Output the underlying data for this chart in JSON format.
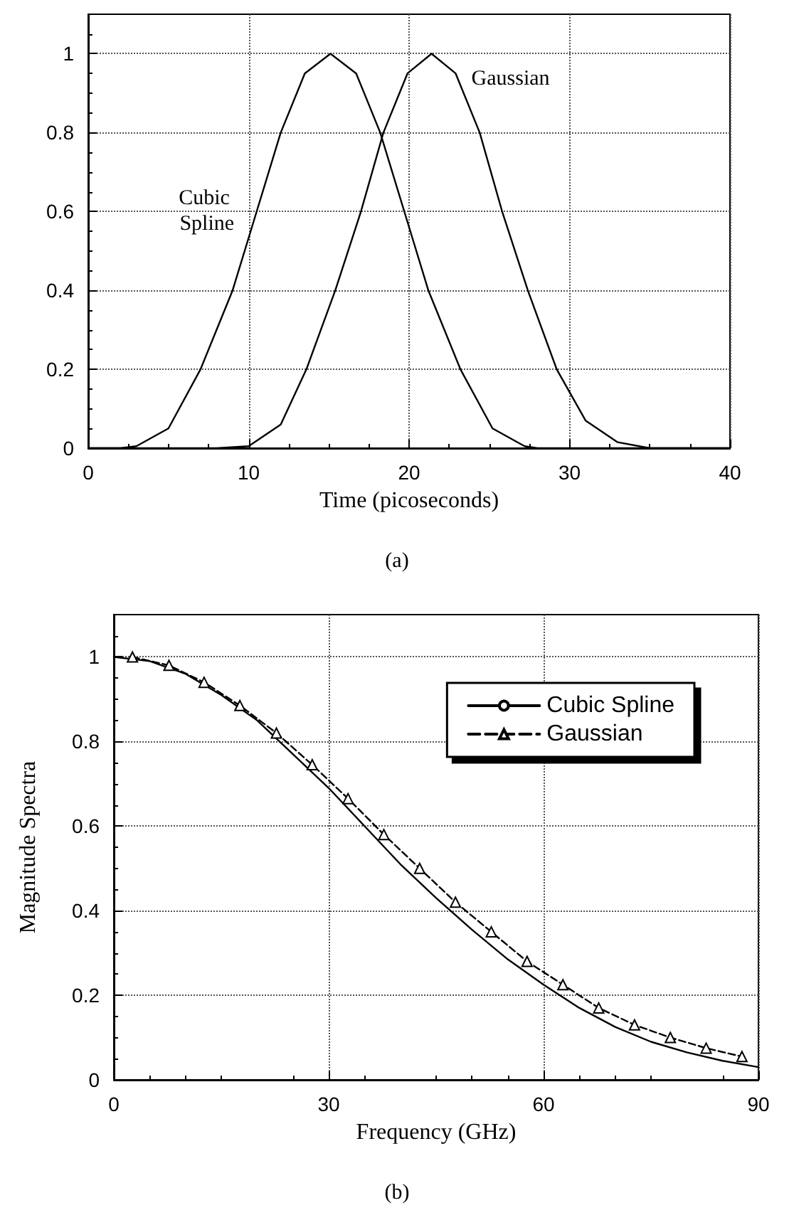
{
  "chart_data": [
    {
      "type": "line",
      "xlabel": "Time (picoseconds)",
      "xlim": [
        0,
        40
      ],
      "xticks": [
        0,
        10,
        20,
        30,
        40
      ],
      "ylim": [
        0,
        1.1
      ],
      "yticks": [
        0,
        0.2,
        0.4,
        0.6,
        0.8,
        1
      ],
      "grid": true,
      "legend": false,
      "marker": "none",
      "line_style": "solid",
      "series": [
        {
          "name": "Cubic Spline",
          "color": "#000000",
          "x": [
            0,
            2,
            3,
            5,
            7,
            9,
            10.5,
            12,
            13.5,
            15.1,
            16.7,
            18.2,
            19.7,
            21.2,
            23.2,
            25.2,
            27.2,
            28,
            40
          ],
          "values": [
            0,
            0,
            0.005,
            0.05,
            0.2,
            0.4,
            0.6,
            0.8,
            0.95,
            1,
            0.95,
            0.8,
            0.6,
            0.4,
            0.2,
            0.05,
            0.005,
            0,
            0
          ]
        },
        {
          "name": "Gaussian",
          "color": "#000000",
          "x": [
            0,
            8,
            10,
            12,
            13.6,
            15.4,
            17,
            18.4,
            19.9,
            21.4,
            22.9,
            24.4,
            25.8,
            27.4,
            29.2,
            31,
            33,
            35,
            40
          ],
          "values": [
            0,
            0,
            0.005,
            0.06,
            0.2,
            0.4,
            0.6,
            0.8,
            0.95,
            1,
            0.95,
            0.8,
            0.6,
            0.4,
            0.2,
            0.07,
            0.015,
            0,
            0
          ]
        }
      ],
      "annotations": [
        "(a)"
      ]
    },
    {
      "type": "line",
      "xlabel": "Frequency (GHz)",
      "ylabel": "Magnitude Spectra",
      "xlim": [
        0,
        90
      ],
      "xticks": [
        0,
        30,
        60,
        90
      ],
      "ylim": [
        0,
        1.1
      ],
      "yticks": [
        0,
        0.2,
        0.4,
        0.6,
        0.8,
        1
      ],
      "grid": true,
      "legend": "top right",
      "series": [
        {
          "name": "Cubic Spline",
          "color": "#000000",
          "marker": "none",
          "line_style": "solid",
          "x": [
            0,
            5,
            10,
            15,
            20,
            25,
            30,
            35,
            40,
            45,
            50,
            55,
            60,
            65,
            70,
            75,
            80,
            85,
            90
          ],
          "values": [
            1,
            0.99,
            0.96,
            0.91,
            0.85,
            0.77,
            0.69,
            0.6,
            0.51,
            0.43,
            0.355,
            0.285,
            0.225,
            0.17,
            0.125,
            0.09,
            0.065,
            0.045,
            0.03
          ]
        },
        {
          "name": "Gaussian",
          "color": "#000000",
          "marker": "triangle",
          "line_style": "dashed",
          "x": [
            2.6,
            7.7,
            12.6,
            17.6,
            22.7,
            27.7,
            32.7,
            37.7,
            42.7,
            47.7,
            52.7,
            57.7,
            62.7,
            67.7,
            72.7,
            77.7,
            82.7,
            87.7
          ],
          "values": [
            1,
            0.98,
            0.94,
            0.885,
            0.82,
            0.745,
            0.665,
            0.58,
            0.5,
            0.42,
            0.35,
            0.28,
            0.225,
            0.17,
            0.13,
            0.1,
            0.075,
            0.055
          ]
        }
      ],
      "annotations": [
        "(b)"
      ]
    }
  ]
}
